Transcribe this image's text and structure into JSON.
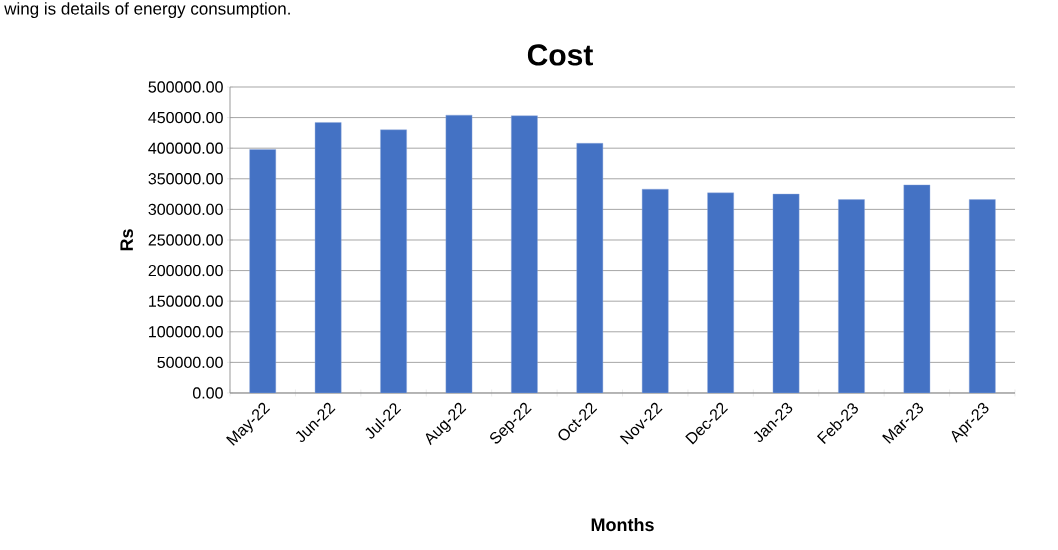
{
  "chart_data": {
    "type": "bar",
    "title": "Cost",
    "xlabel": "Months",
    "ylabel": "Rs",
    "annotations": [
      "wing is details of energy consumption."
    ],
    "categories": [
      "May-22",
      "Jun-22",
      "Jul-22",
      "Aug-22",
      "Sep-22",
      "Oct-22",
      "Nov-22",
      "Dec-22",
      "Jan-23",
      "Feb-23",
      "Mar-23",
      "Apr-23"
    ],
    "values": [
      398000,
      442000,
      430000,
      454000,
      453000,
      408000,
      333000,
      327000,
      325000,
      316000,
      340000,
      316000
    ],
    "color": "#4472c4",
    "ylim": [
      0,
      500000
    ],
    "yticks": [
      {
        "value": 0,
        "label": "0.00"
      },
      {
        "value": 50000,
        "label": "50000.00"
      },
      {
        "value": 100000,
        "label": "100000.00"
      },
      {
        "value": 150000,
        "label": "150000.00"
      },
      {
        "value": 200000,
        "label": "200000.00"
      },
      {
        "value": 250000,
        "label": "250000.00"
      },
      {
        "value": 300000,
        "label": "300000.00"
      },
      {
        "value": 350000,
        "label": "350000.00"
      },
      {
        "value": 400000,
        "label": "400000.00"
      },
      {
        "value": 450000,
        "label": "450000.00"
      },
      {
        "value": 500000,
        "label": "500000.00"
      }
    ],
    "grid": "y"
  }
}
